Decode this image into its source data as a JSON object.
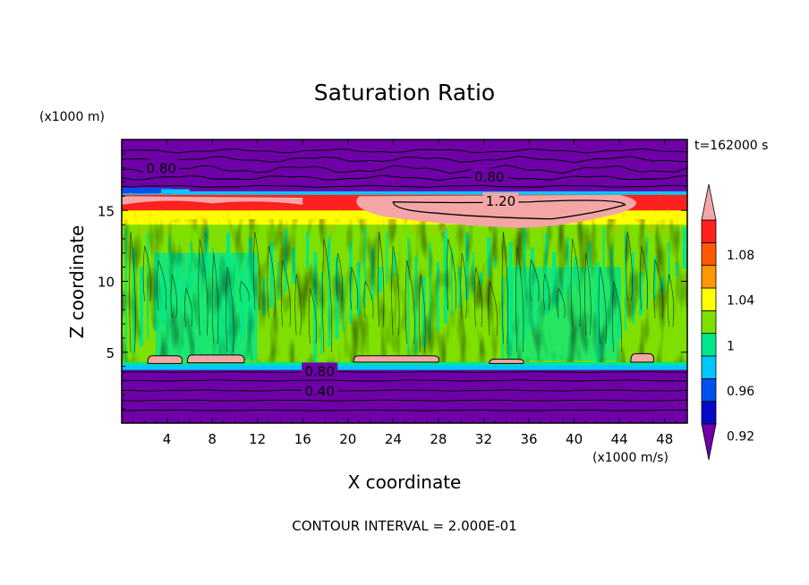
{
  "chart_data": {
    "type": "heatmap",
    "title": "Saturation Ratio",
    "time_label": "t=162000 s",
    "xlabel": "X coordinate",
    "ylabel": "Z coordinate",
    "x_unit": "(x1000 m/s)",
    "y_unit": "(x1000 m)",
    "xlim": [
      0,
      50
    ],
    "ylim": [
      0,
      20
    ],
    "x_ticks": [
      "4",
      "8",
      "12",
      "16",
      "20",
      "24",
      "28",
      "32",
      "36",
      "40",
      "44",
      "48"
    ],
    "y_ticks": [
      "5",
      "10",
      "15"
    ],
    "contour_interval_text": "CONTOUR INTERVAL = 2.000E-01",
    "contour_labels": [
      {
        "text": "0.80",
        "x": 3.5,
        "z": 18.0
      },
      {
        "text": "0.80",
        "x": 32.5,
        "z": 17.4
      },
      {
        "text": "1.20",
        "x": 33.5,
        "z": 15.7
      },
      {
        "text": "0.80",
        "x": 17.5,
        "z": 3.7
      },
      {
        "text": "0.40",
        "x": 17.5,
        "z": 2.3
      }
    ],
    "colorbar": {
      "levels": [
        0.92,
        0.94,
        0.96,
        0.98,
        1.0,
        1.02,
        1.04,
        1.06,
        1.08,
        1.1
      ],
      "tick_labels": [
        "1.08",
        "1.04",
        "1",
        "0.96",
        "0.92"
      ],
      "tick_values": [
        1.08,
        1.04,
        1.0,
        0.96,
        0.92
      ],
      "colors": [
        "#6f00a8",
        "#3a1aa8",
        "#0808c8",
        "#0050f0",
        "#00c8ff",
        "#00e88c",
        "#7ee000",
        "#ffff00",
        "#ff9800",
        "#ff5a00",
        "#ff2020",
        "#f4a6a6"
      ]
    },
    "layers": [
      {
        "z_from": 0.0,
        "z_to": 3.8,
        "value": "<0.92"
      },
      {
        "z_from": 3.8,
        "z_to": 4.2,
        "value": "0.96-1.02"
      },
      {
        "z_from": 4.2,
        "z_to": 13.5,
        "value": "0.98-1.02"
      },
      {
        "z_from": 13.5,
        "z_to": 16.2,
        "value": "1.02-1.10+"
      },
      {
        "z_from": 16.2,
        "z_to": 20.0,
        "value": "<0.92"
      }
    ]
  }
}
